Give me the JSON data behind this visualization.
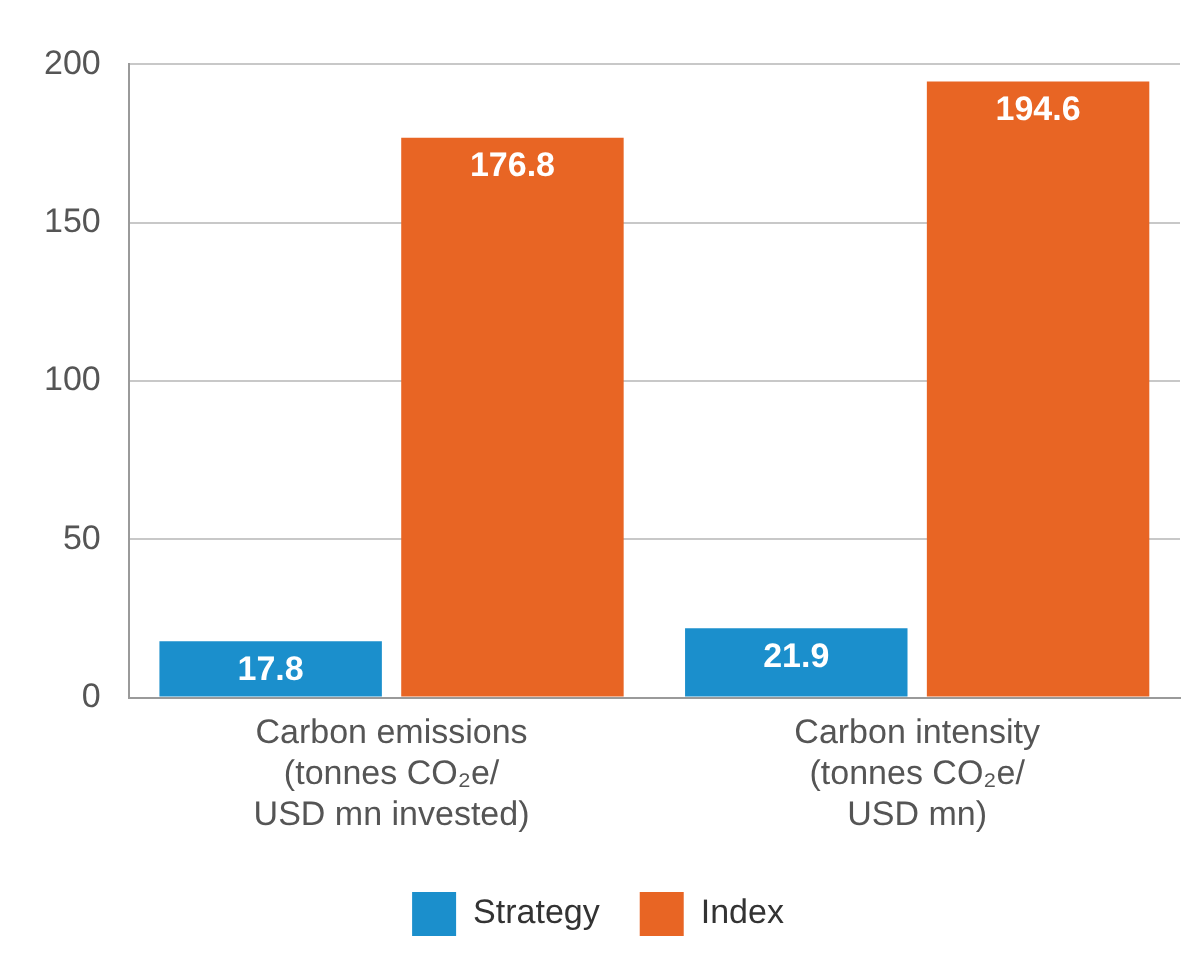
{
  "chart_data": {
    "type": "bar",
    "categories": [
      "Carbon emissions\n(tonnes CO₂e/\nUSD mn invested)",
      "Carbon intensity\n(tonnes CO₂e/\nUSD mn)"
    ],
    "series": [
      {
        "name": "Strategy",
        "color": "#1b8fcc",
        "values": [
          17.8,
          21.9
        ]
      },
      {
        "name": "Index",
        "color": "#e86524",
        "values": [
          176.8,
          194.6
        ]
      }
    ],
    "ylim": [
      0,
      200
    ],
    "yticks": [
      0,
      50,
      100,
      150,
      200
    ],
    "grid": "y",
    "legend": "bottom",
    "data_labels": true
  }
}
